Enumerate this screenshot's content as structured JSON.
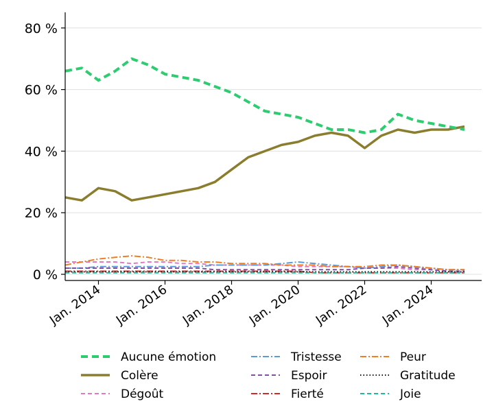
{
  "chart_data": {
    "type": "line",
    "title": "",
    "xlabel": "",
    "ylabel": "",
    "x": [
      2013.0,
      2013.5,
      2014.0,
      2014.5,
      2015.0,
      2015.5,
      2016.0,
      2016.5,
      2017.0,
      2017.5,
      2018.0,
      2018.5,
      2019.0,
      2019.5,
      2020.0,
      2020.5,
      2021.0,
      2021.5,
      2022.0,
      2022.5,
      2023.0,
      2023.5,
      2024.0,
      2024.5,
      2025.0
    ],
    "xlim": [
      2013.0,
      2025.5
    ],
    "ylim": [
      -2,
      85
    ],
    "x_ticks": [
      {
        "value": 2014,
        "label": "Jan. 2014"
      },
      {
        "value": 2016,
        "label": "Jan. 2016"
      },
      {
        "value": 2018,
        "label": "Jan. 2018"
      },
      {
        "value": 2020,
        "label": "Jan. 2020"
      },
      {
        "value": 2022,
        "label": "Jan. 2022"
      },
      {
        "value": 2024,
        "label": "Jan. 2024"
      }
    ],
    "y_ticks": [
      {
        "value": 0,
        "label": "0 %"
      },
      {
        "value": 20,
        "label": "20 %"
      },
      {
        "value": 40,
        "label": "40 %"
      },
      {
        "value": 60,
        "label": "60 %"
      },
      {
        "value": 80,
        "label": "80 %"
      }
    ],
    "grid": "horizontal",
    "legend_position": "bottom",
    "series": [
      {
        "name": "Aucune émotion",
        "color": "#2ecc71",
        "dash": "10,6",
        "width": 4,
        "values": [
          66,
          67,
          63,
          66,
          70,
          68,
          65,
          64,
          63,
          61,
          59,
          56,
          53,
          52,
          51,
          49,
          47,
          47,
          46,
          47,
          52,
          50,
          49,
          48,
          47
        ]
      },
      {
        "name": "Colère",
        "color": "#8b7d2e",
        "dash": "",
        "width": 3.5,
        "values": [
          25,
          24,
          28,
          27,
          24,
          25,
          26,
          27,
          28,
          30,
          34,
          38,
          40,
          42,
          43,
          45,
          46,
          45,
          41,
          45,
          47,
          46,
          47,
          47,
          48
        ]
      },
      {
        "name": "Dégoût",
        "color": "#e377c2",
        "dash": "6,4",
        "width": 2,
        "values": [
          4,
          4,
          4,
          4,
          3.5,
          4,
          4,
          3.5,
          3.5,
          3,
          3,
          3,
          3,
          3,
          2.5,
          2.5,
          2.5,
          2.5,
          2,
          2,
          2,
          1.5,
          1.5,
          1,
          1
        ]
      },
      {
        "name": "Tristesse",
        "color": "#5b9bd5",
        "dash": "9,3,2,3",
        "width": 2,
        "values": [
          2,
          2,
          2.5,
          2.5,
          2.5,
          2.5,
          2.5,
          2.5,
          2.5,
          3,
          3,
          3,
          3,
          3.5,
          4,
          3.5,
          3,
          2.5,
          2,
          2.5,
          3,
          2.5,
          2,
          1.5,
          1.5
        ]
      },
      {
        "name": "Espoir",
        "color": "#7f4fa6",
        "dash": "6,4",
        "width": 2,
        "values": [
          2,
          2,
          2,
          2,
          2,
          2,
          2,
          2,
          2,
          1.5,
          1.5,
          1.5,
          1.5,
          1.5,
          1.5,
          1.5,
          1.5,
          1.5,
          2,
          2,
          2.5,
          2,
          1.5,
          1,
          1
        ]
      },
      {
        "name": "Fierté",
        "color": "#d62728",
        "dash": "9,3,2,3",
        "width": 2,
        "values": [
          1,
          1,
          1,
          1,
          1,
          1,
          1,
          1,
          1,
          1,
          1,
          1,
          1,
          1,
          1,
          0.5,
          0.5,
          0.5,
          0.5,
          0.5,
          0.5,
          0.5,
          0.5,
          0.5,
          0.5
        ]
      },
      {
        "name": "Peur",
        "color": "#ef7d22",
        "dash": "9,3,2,3",
        "width": 2,
        "values": [
          3,
          4,
          5,
          5.5,
          6,
          5.5,
          4.5,
          4.5,
          4,
          4,
          3.5,
          3.5,
          3.5,
          3,
          3,
          3,
          2.5,
          2.5,
          2.5,
          3,
          3,
          2.5,
          2,
          1.5,
          1.5
        ]
      },
      {
        "name": "Gratitude",
        "color": "#111111",
        "dash": "1.5,3",
        "width": 2,
        "values": [
          0.8,
          0.8,
          0.8,
          0.8,
          0.8,
          0.8,
          0.8,
          0.8,
          0.8,
          0.8,
          0.8,
          0.8,
          0.8,
          0.8,
          0.8,
          0.8,
          0.8,
          0.8,
          0.8,
          0.8,
          0.8,
          0.8,
          0.8,
          0.8,
          0.8
        ]
      },
      {
        "name": "Joie",
        "color": "#1abc9c",
        "dash": "6,4",
        "width": 2,
        "values": [
          0.5,
          0.5,
          0.5,
          0.5,
          0.5,
          0.5,
          0.5,
          0.5,
          0.5,
          0.5,
          0.5,
          0.5,
          0.5,
          0.5,
          0.5,
          0.5,
          0.5,
          0.5,
          0.5,
          0.5,
          0.5,
          0.5,
          0.5,
          0.5,
          0.5
        ]
      }
    ]
  }
}
